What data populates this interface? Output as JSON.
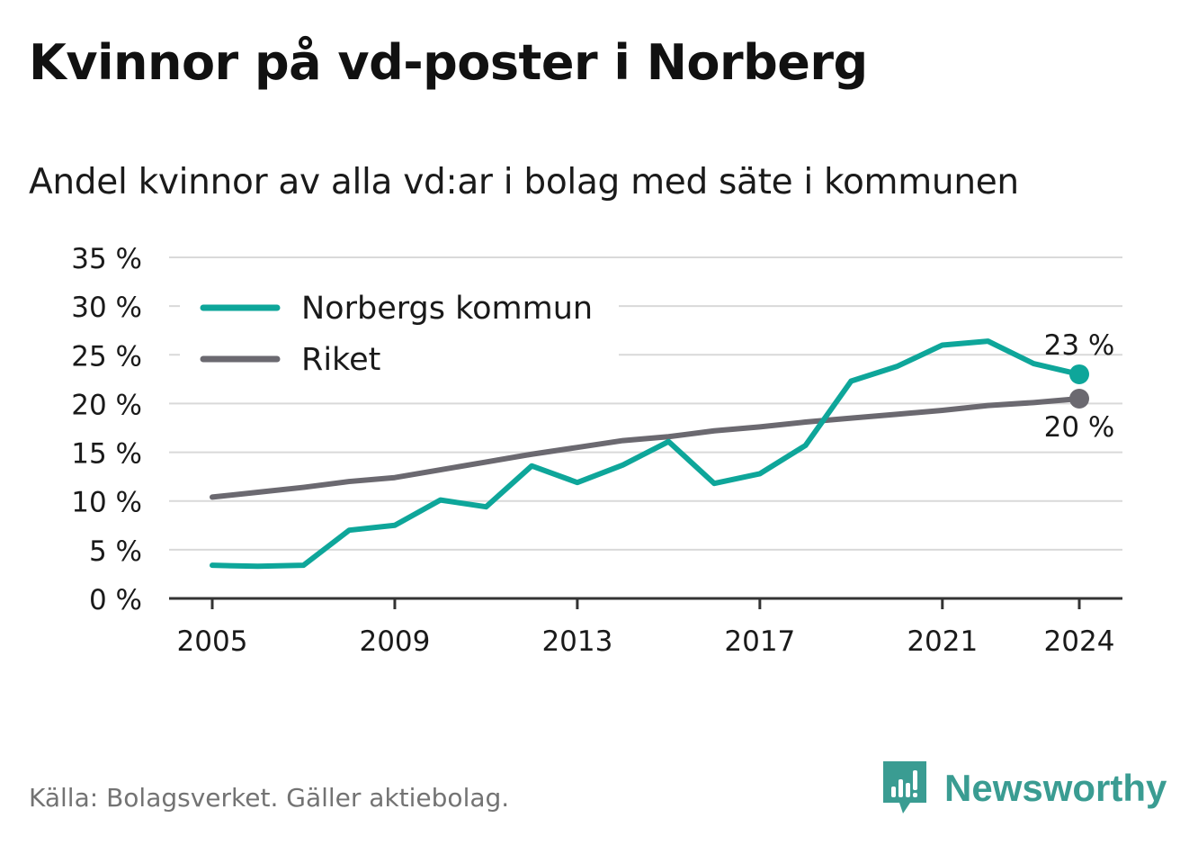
{
  "title": "Kvinnor på vd-poster i Norberg",
  "subtitle": "Andel kvinnor av alla vd:ar i bolag med säte i kommunen",
  "source": "Källa: Bolagsverket. Gäller aktiebolag.",
  "brand": {
    "name": "Newsworthy",
    "icon": "newsworthy-logo-icon",
    "color": "#3a9c92"
  },
  "chart_data": {
    "type": "line",
    "title": "Kvinnor på vd-poster i Norberg",
    "subtitle": "Andel kvinnor av alla vd:ar i bolag med säte i kommunen",
    "x": [
      2005,
      2006,
      2007,
      2008,
      2009,
      2010,
      2011,
      2012,
      2013,
      2014,
      2015,
      2016,
      2017,
      2018,
      2019,
      2020,
      2021,
      2022,
      2023,
      2024
    ],
    "x_ticks": [
      "2005",
      "2009",
      "2013",
      "2017",
      "2021",
      "2024"
    ],
    "y_ticks": [
      "0 %",
      "5 %",
      "10 %",
      "15 %",
      "20 %",
      "25 %",
      "30 %",
      "35 %"
    ],
    "ylim": [
      0,
      35
    ],
    "grid": true,
    "legend_position": "top-left",
    "series": [
      {
        "name": "Norbergs kommun",
        "color": "#0ea69a",
        "values": [
          3.4,
          3.3,
          3.4,
          7.0,
          7.5,
          10.1,
          9.4,
          13.6,
          11.9,
          13.7,
          16.1,
          11.8,
          12.8,
          15.7,
          22.3,
          23.8,
          26.0,
          26.4,
          24.1,
          23.0
        ],
        "end_label": "23 %"
      },
      {
        "name": "Riket",
        "color": "#6b6970",
        "values": [
          10.4,
          10.9,
          11.4,
          12.0,
          12.4,
          13.2,
          14.0,
          14.8,
          15.5,
          16.2,
          16.6,
          17.2,
          17.6,
          18.1,
          18.5,
          18.9,
          19.3,
          19.8,
          20.1,
          20.5
        ],
        "end_label": "20 %"
      }
    ]
  }
}
